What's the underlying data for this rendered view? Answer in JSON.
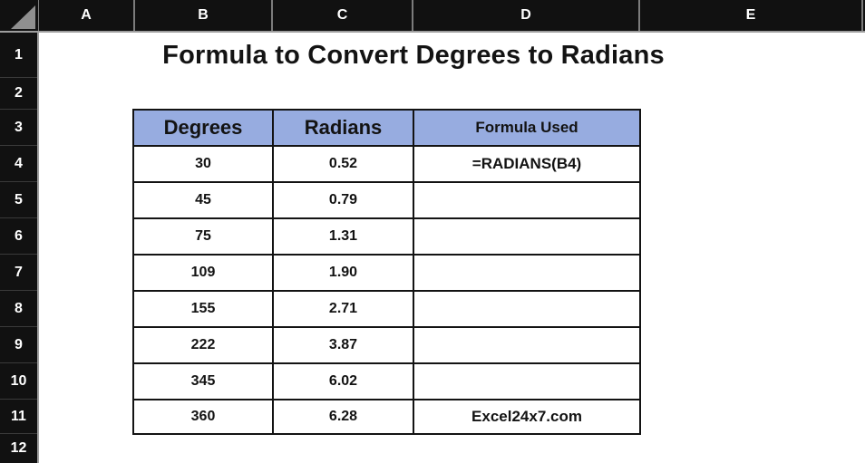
{
  "title": "Formula to Convert Degrees to Radians",
  "spreadsheet": {
    "column_headers": [
      "A",
      "B",
      "C",
      "D",
      "E"
    ],
    "row_headers": [
      "1",
      "2",
      "3",
      "4",
      "5",
      "6",
      "7",
      "8",
      "9",
      "10",
      "11",
      "12"
    ],
    "select_all_icon": "select-all-triangle"
  },
  "table": {
    "columns": [
      "Degrees",
      "Radians",
      "Formula Used"
    ],
    "rows": [
      {
        "degrees": "30",
        "radians": "0.52",
        "formula": "=RADIANS(B4)"
      },
      {
        "degrees": "45",
        "radians": "0.79",
        "formula": ""
      },
      {
        "degrees": "75",
        "radians": "1.31",
        "formula": ""
      },
      {
        "degrees": "109",
        "radians": "1.90",
        "formula": ""
      },
      {
        "degrees": "155",
        "radians": "2.71",
        "formula": ""
      },
      {
        "degrees": "222",
        "radians": "3.87",
        "formula": ""
      },
      {
        "degrees": "345",
        "radians": "6.02",
        "formula": ""
      },
      {
        "degrees": "360",
        "radians": "6.28",
        "formula": "Excel24x7.com"
      }
    ]
  },
  "colors": {
    "header_bg": "#111111",
    "header_text": "#ffffff",
    "table_header_bg": "#97ace0",
    "table_border": "#131313",
    "header_separator": "#7c7c7c",
    "sheet_bg": "#ffffff"
  }
}
